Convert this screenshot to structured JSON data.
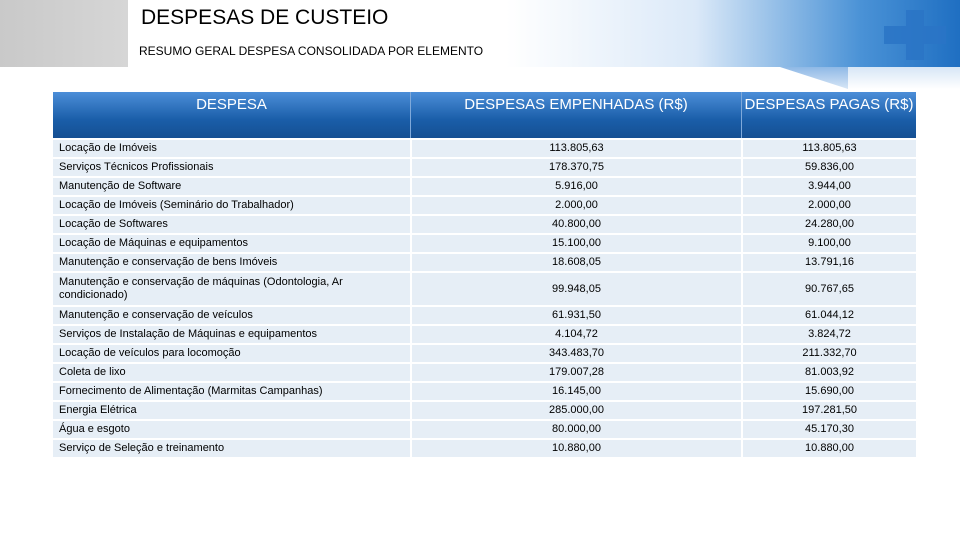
{
  "slide": {
    "title": "DESPESAS DE CUSTEIO",
    "subtitle": "RESUMO GERAL DESPESA CONSOLIDADA POR ELEMENTO"
  },
  "table": {
    "headers": [
      "DESPESA",
      "DESPESAS EMPENHADAS (R$)",
      "DESPESAS PAGAS (R$)"
    ],
    "rows": [
      [
        "Locação de Imóveis",
        "113.805,63",
        "113.805,63"
      ],
      [
        "Serviços Técnicos Profissionais",
        "178.370,75",
        "59.836,00"
      ],
      [
        "Manutenção de Software",
        "5.916,00",
        "3.944,00"
      ],
      [
        "Locação de Imóveis (Seminário do Trabalhador)",
        "2.000,00",
        "2.000,00"
      ],
      [
        "Locação de Softwares",
        "40.800,00",
        "24.280,00"
      ],
      [
        "Locação de Máquinas e equipamentos",
        "15.100,00",
        "9.100,00"
      ],
      [
        "Manutenção e conservação de bens Imóveis",
        "18.608,05",
        "13.791,16"
      ],
      [
        "Manutenção e conservação de máquinas (Odontologia, Ar condicionado)",
        "99.948,05",
        "90.767,65"
      ],
      [
        "Manutenção e conservação de veículos",
        "61.931,50",
        "61.044,12"
      ],
      [
        "Serviços de Instalação de Máquinas e equipamentos",
        "4.104,72",
        "3.824,72"
      ],
      [
        "Locação de veículos para locomoção",
        "343.483,70",
        "211.332,70"
      ],
      [
        "Coleta de lixo",
        "179.007,28",
        "81.003,92"
      ],
      [
        "Fornecimento de Alimentação (Marmitas Campanhas)",
        "16.145,00",
        "15.690,00"
      ],
      [
        "Energia Elétrica",
        "285.000,00",
        "197.281,50"
      ],
      [
        "Água e esgoto",
        "80.000,00",
        "45.170,30"
      ],
      [
        "Serviço de Seleção e treinamento",
        "10.880,00",
        "10.880,00"
      ]
    ]
  },
  "colors": {
    "header_blue": "#1a5ea9",
    "row_bg": "#e6eef6",
    "accent_blue": "#1f6fc2"
  },
  "icons": {
    "logo": "medical-cross-icon"
  }
}
